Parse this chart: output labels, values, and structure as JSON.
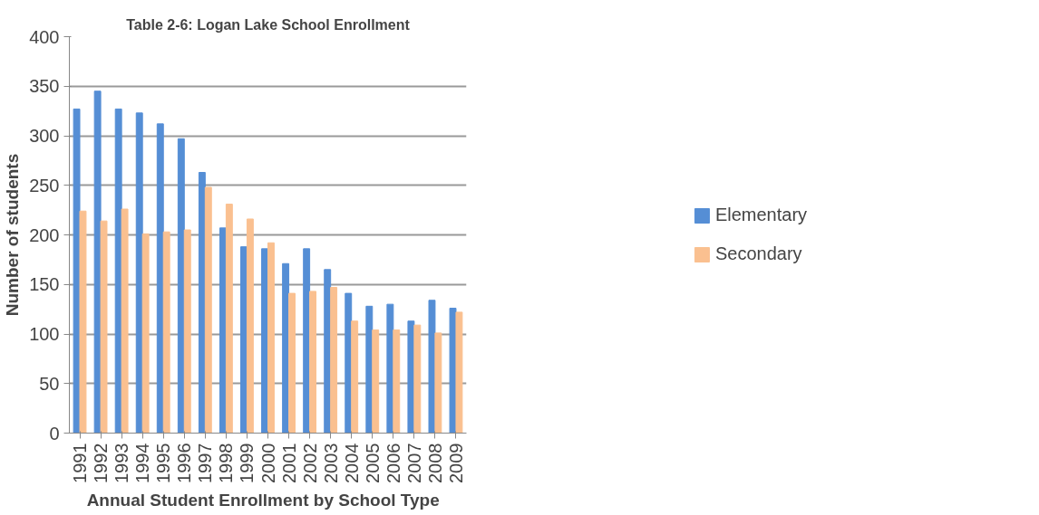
{
  "chart_data": {
    "type": "bar",
    "title": "Table 2-6: Logan Lake School Enrollment",
    "xlabel": "Annual Student Enrollment  by School  Type",
    "ylabel": "Number of students",
    "categories": [
      "1991",
      "1992",
      "1993",
      "1994",
      "1995",
      "1996",
      "1997",
      "1998",
      "1999",
      "2000",
      "2001",
      "2002",
      "2003",
      "2004",
      "2005",
      "2006",
      "2007",
      "2008",
      "2009"
    ],
    "series": [
      {
        "name": "Elementary",
        "color": "#558ed5",
        "values": [
          327,
          345,
          327,
          323,
          312,
          297,
          263,
          207,
          188,
          186,
          171,
          186,
          165,
          141,
          128,
          130,
          113,
          134,
          126
        ]
      },
      {
        "name": "Secondary",
        "color": "#fac090",
        "values": [
          224,
          214,
          226,
          201,
          203,
          205,
          248,
          231,
          216,
          192,
          141,
          143,
          147,
          113,
          104,
          104,
          109,
          101,
          122
        ]
      }
    ],
    "ylim": [
      0,
      400
    ],
    "yticks": [
      0,
      50,
      100,
      150,
      200,
      250,
      300,
      350,
      400
    ],
    "grid": "y",
    "legend": "right"
  }
}
